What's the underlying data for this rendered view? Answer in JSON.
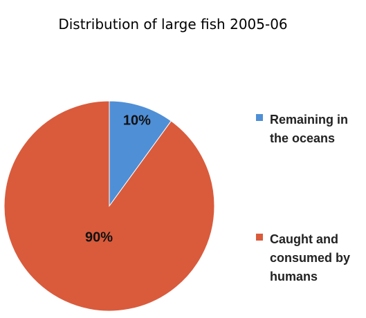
{
  "chart_data": {
    "type": "pie",
    "title": "Distribution of large fish 2005-06",
    "categories": [
      "Remaining in the oceans",
      "Caught and consumed by humans"
    ],
    "values": [
      10,
      90
    ],
    "value_labels": [
      "10%",
      "90%"
    ],
    "colors": [
      "#4f8fd6",
      "#d95b3c"
    ],
    "legend": "right"
  }
}
